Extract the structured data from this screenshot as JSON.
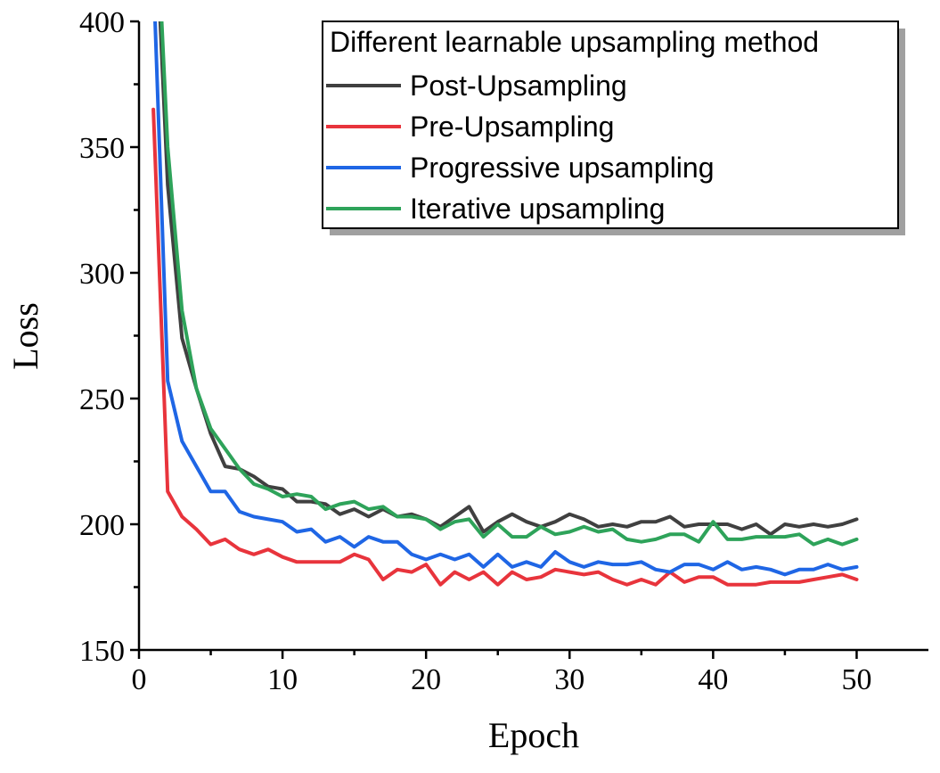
{
  "chart_data": {
    "type": "line",
    "title": "",
    "xlabel": "Epoch",
    "ylabel": "Loss",
    "xlim": [
      0,
      55
    ],
    "ylim": [
      150,
      400
    ],
    "xticks": [
      0,
      10,
      20,
      30,
      40,
      50
    ],
    "yticks": [
      150,
      200,
      250,
      300,
      350,
      400
    ],
    "xtick_labels": [
      "0",
      "10",
      "20",
      "30",
      "40",
      "50"
    ],
    "ytick_labels": [
      "150",
      "200",
      "250",
      "300",
      "350",
      "400"
    ],
    "grid": false,
    "legend": {
      "title": "Different learnable upsampling method",
      "placement": "top-right"
    },
    "x": [
      1,
      2,
      3,
      4,
      5,
      6,
      7,
      8,
      9,
      10,
      11,
      12,
      13,
      14,
      15,
      16,
      17,
      18,
      19,
      20,
      21,
      22,
      23,
      24,
      25,
      26,
      27,
      28,
      29,
      30,
      31,
      32,
      33,
      34,
      35,
      36,
      37,
      38,
      39,
      40,
      41,
      42,
      43,
      44,
      45,
      46,
      47,
      48,
      49,
      50
    ],
    "series": [
      {
        "name": "Post-Upsampling",
        "color": "#404040",
        "values": [
          460,
          335,
          274,
          254,
          236,
          223,
          222,
          219,
          215,
          214,
          209,
          209,
          208,
          204,
          206,
          203,
          206,
          203,
          204,
          202,
          199,
          203,
          207,
          197,
          201,
          204,
          201,
          199,
          201,
          204,
          202,
          199,
          200,
          199,
          201,
          201,
          203,
          199,
          200,
          200,
          200,
          198,
          200,
          196,
          200,
          199,
          200,
          199,
          200,
          202
        ]
      },
      {
        "name": "Pre-Upsampling",
        "color": "#e8343c",
        "values": [
          365,
          213,
          203,
          198,
          192,
          194,
          190,
          188,
          190,
          187,
          185,
          185,
          185,
          185,
          188,
          186,
          178,
          182,
          181,
          184,
          176,
          181,
          178,
          181,
          176,
          181,
          178,
          179,
          182,
          181,
          180,
          181,
          178,
          176,
          178,
          176,
          181,
          177,
          179,
          179,
          176,
          176,
          176,
          177,
          177,
          177,
          178,
          179,
          180,
          178
        ]
      },
      {
        "name": "Progressive upsampling",
        "color": "#1f66e5",
        "values": [
          420,
          257,
          233,
          223,
          213,
          213,
          205,
          203,
          202,
          201,
          197,
          198,
          193,
          195,
          191,
          195,
          193,
          193,
          188,
          186,
          188,
          186,
          188,
          183,
          188,
          183,
          185,
          183,
          189,
          185,
          183,
          185,
          184,
          184,
          185,
          182,
          181,
          184,
          184,
          182,
          185,
          182,
          183,
          182,
          180,
          182,
          182,
          184,
          182,
          183
        ]
      },
      {
        "name": "Iterative upsampling",
        "color": "#2ea35a",
        "values": [
          470,
          350,
          285,
          254,
          238,
          230,
          222,
          216,
          214,
          211,
          212,
          211,
          206,
          208,
          209,
          206,
          207,
          203,
          203,
          202,
          198,
          201,
          202,
          195,
          200,
          195,
          195,
          199,
          196,
          197,
          199,
          197,
          198,
          194,
          193,
          194,
          196,
          196,
          193,
          201,
          194,
          194,
          195,
          195,
          195,
          196,
          192,
          194,
          192,
          194
        ]
      }
    ]
  }
}
